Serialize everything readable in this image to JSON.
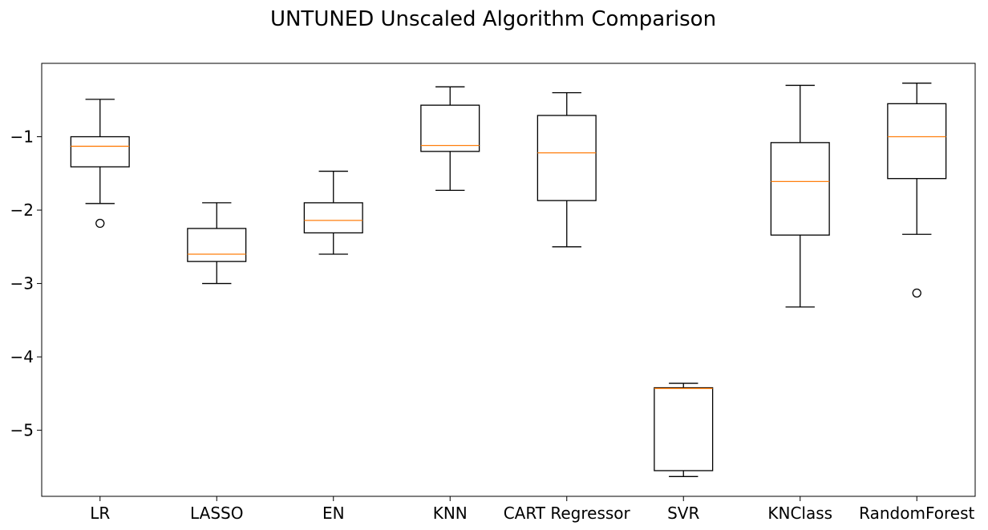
{
  "chart_data": {
    "type": "box",
    "title": "UNTUNED Unscaled Algorithm Comparison",
    "xlabel": "",
    "ylabel": "",
    "ylim": [
      -5.9,
      0.0
    ],
    "yticks": [
      -1,
      -2,
      -3,
      -4,
      -5
    ],
    "ytick_labels": [
      "−1",
      "−2",
      "−3",
      "−4",
      "−5"
    ],
    "grid": false,
    "median_color": "#ff7f0e",
    "box_color": "#000000",
    "categories": [
      "LR",
      "LASSO",
      "EN",
      "KNN",
      "CART Regressor",
      "SVR",
      "KNClass",
      "RandomForest"
    ],
    "boxes": [
      {
        "name": "LR",
        "whisker_low": -1.91,
        "q1": -1.41,
        "median": -1.13,
        "q3": -1.0,
        "whisker_high": -0.49,
        "fliers": [
          -2.18
        ]
      },
      {
        "name": "LASSO",
        "whisker_low": -3.0,
        "q1": -2.7,
        "median": -2.6,
        "q3": -2.25,
        "whisker_high": -1.9,
        "fliers": []
      },
      {
        "name": "EN",
        "whisker_low": -2.6,
        "q1": -2.31,
        "median": -2.14,
        "q3": -1.9,
        "whisker_high": -1.47,
        "fliers": []
      },
      {
        "name": "KNN",
        "whisker_low": -1.73,
        "q1": -1.2,
        "median": -1.12,
        "q3": -0.57,
        "whisker_high": -0.32,
        "fliers": []
      },
      {
        "name": "CART Regressor",
        "whisker_low": -2.5,
        "q1": -1.87,
        "median": -1.22,
        "q3": -0.71,
        "whisker_high": -0.4,
        "fliers": []
      },
      {
        "name": "SVR",
        "whisker_low": -5.63,
        "q1": -5.55,
        "median": -4.43,
        "q3": -4.42,
        "whisker_high": -4.36,
        "fliers": []
      },
      {
        "name": "KNClass",
        "whisker_low": -3.32,
        "q1": -2.34,
        "median": -1.61,
        "q3": -1.08,
        "whisker_high": -0.3,
        "fliers": []
      },
      {
        "name": "RandomForest",
        "whisker_low": -2.33,
        "q1": -1.57,
        "median": -1.0,
        "q3": -0.55,
        "whisker_high": -0.27,
        "fliers": [
          -3.13
        ]
      }
    ]
  }
}
